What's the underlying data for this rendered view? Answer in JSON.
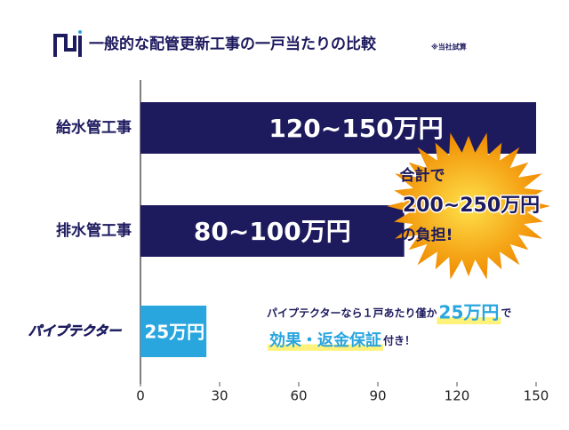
{
  "chart_data": {
    "type": "bar",
    "orientation": "horizontal",
    "title": "一般的な配管更新工事の一戸当たりの比較",
    "subtitle": "※当社試算",
    "categories": [
      "給水管工事",
      "排水管工事",
      "パイプテクター"
    ],
    "values": [
      150,
      100,
      25
    ],
    "value_labels": [
      "120~150万円",
      "80~100万円",
      "25万円"
    ],
    "colors": [
      "#1d1a5e",
      "#1d1a5e",
      "#2aa6df"
    ],
    "xlim": [
      0,
      150
    ],
    "xticks": [
      0,
      30,
      60,
      90,
      120,
      150
    ],
    "grid": false,
    "annotations": {
      "total": [
        "合計で",
        "200~250万円",
        "の負担!"
      ],
      "note_line1": [
        "パイプテクターなら１戸あたり僅か",
        "25万円",
        "で"
      ],
      "note_line2": [
        "効果・返金保証",
        "付き！"
      ]
    }
  }
}
